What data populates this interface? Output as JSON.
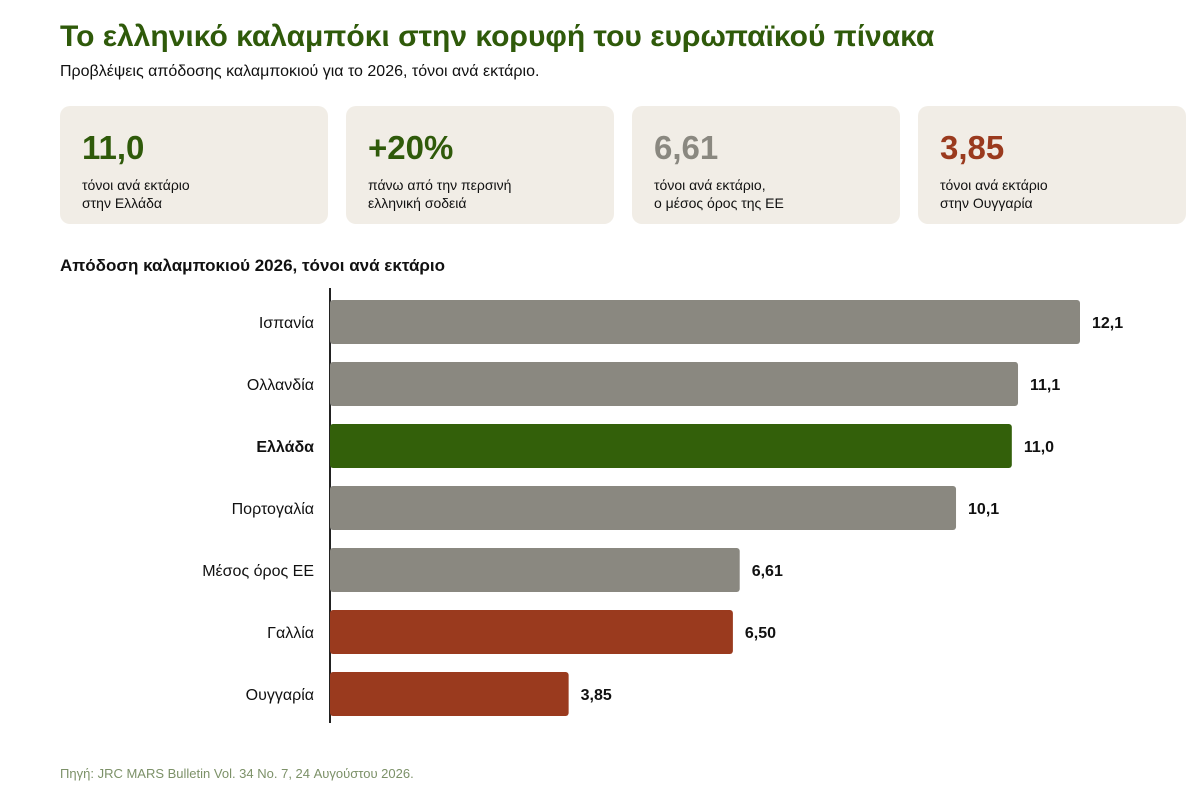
{
  "header": {
    "title": "Το ελληνικό καλαμπόκι στην κορυφή του ευρωπαϊκού πίνακα",
    "subtitle": "Προβλέψεις απόδοσης καλαμποκιού για το 2026, τόνοι ανά εκτάριο."
  },
  "stats": [
    {
      "value": "11,0",
      "label_line1": "τόνοι ανά εκτάριο",
      "label_line2": "στην Ελλάδα",
      "color": "#2f5a0a"
    },
    {
      "value": "+20%",
      "label_line1": "πάνω από την περσινή",
      "label_line2": "ελληνική σοδειά",
      "color": "#2f5a0a"
    },
    {
      "value": "6,61",
      "label_line1": "τόνοι ανά εκτάριο,",
      "label_line2": "ο μέσος όρος της ΕΕ",
      "color": "#8a8880"
    },
    {
      "value": "3,85",
      "label_line1": "τόνοι ανά εκτάριο",
      "label_line2": "στην Ουγγαρία",
      "color": "#9a3a1e"
    }
  ],
  "chart_data": {
    "type": "bar",
    "orientation": "horizontal",
    "title": "Απόδοση καλαμποκιού 2026, τόνοι ανά εκτάριο",
    "categories": [
      "Ισπανία",
      "Ολλανδία",
      "Ελλάδα",
      "Πορτογαλία",
      "Μέσος όρος ΕΕ",
      "Γαλλία",
      "Ουγγαρία"
    ],
    "values": [
      12.1,
      11.1,
      11.0,
      10.1,
      6.61,
      6.5,
      3.85
    ],
    "value_labels": [
      "12,1",
      "11,1",
      "11,0",
      "10,1",
      "6,61",
      "6,50",
      "3,85"
    ],
    "bar_colors": [
      "#8a8880",
      "#8a8880",
      "#33600a",
      "#8a8880",
      "#8a8880",
      "#9a3a1e",
      "#9a3a1e"
    ],
    "highlight_category": "Ελλάδα",
    "xlim": [
      0,
      12.1
    ],
    "grid": false,
    "axis_color": "#222222"
  },
  "footer": {
    "source": "Πηγή: JRC MARS Bulletin Vol. 34 No. 7, 24 Αυγούστου 2026."
  }
}
